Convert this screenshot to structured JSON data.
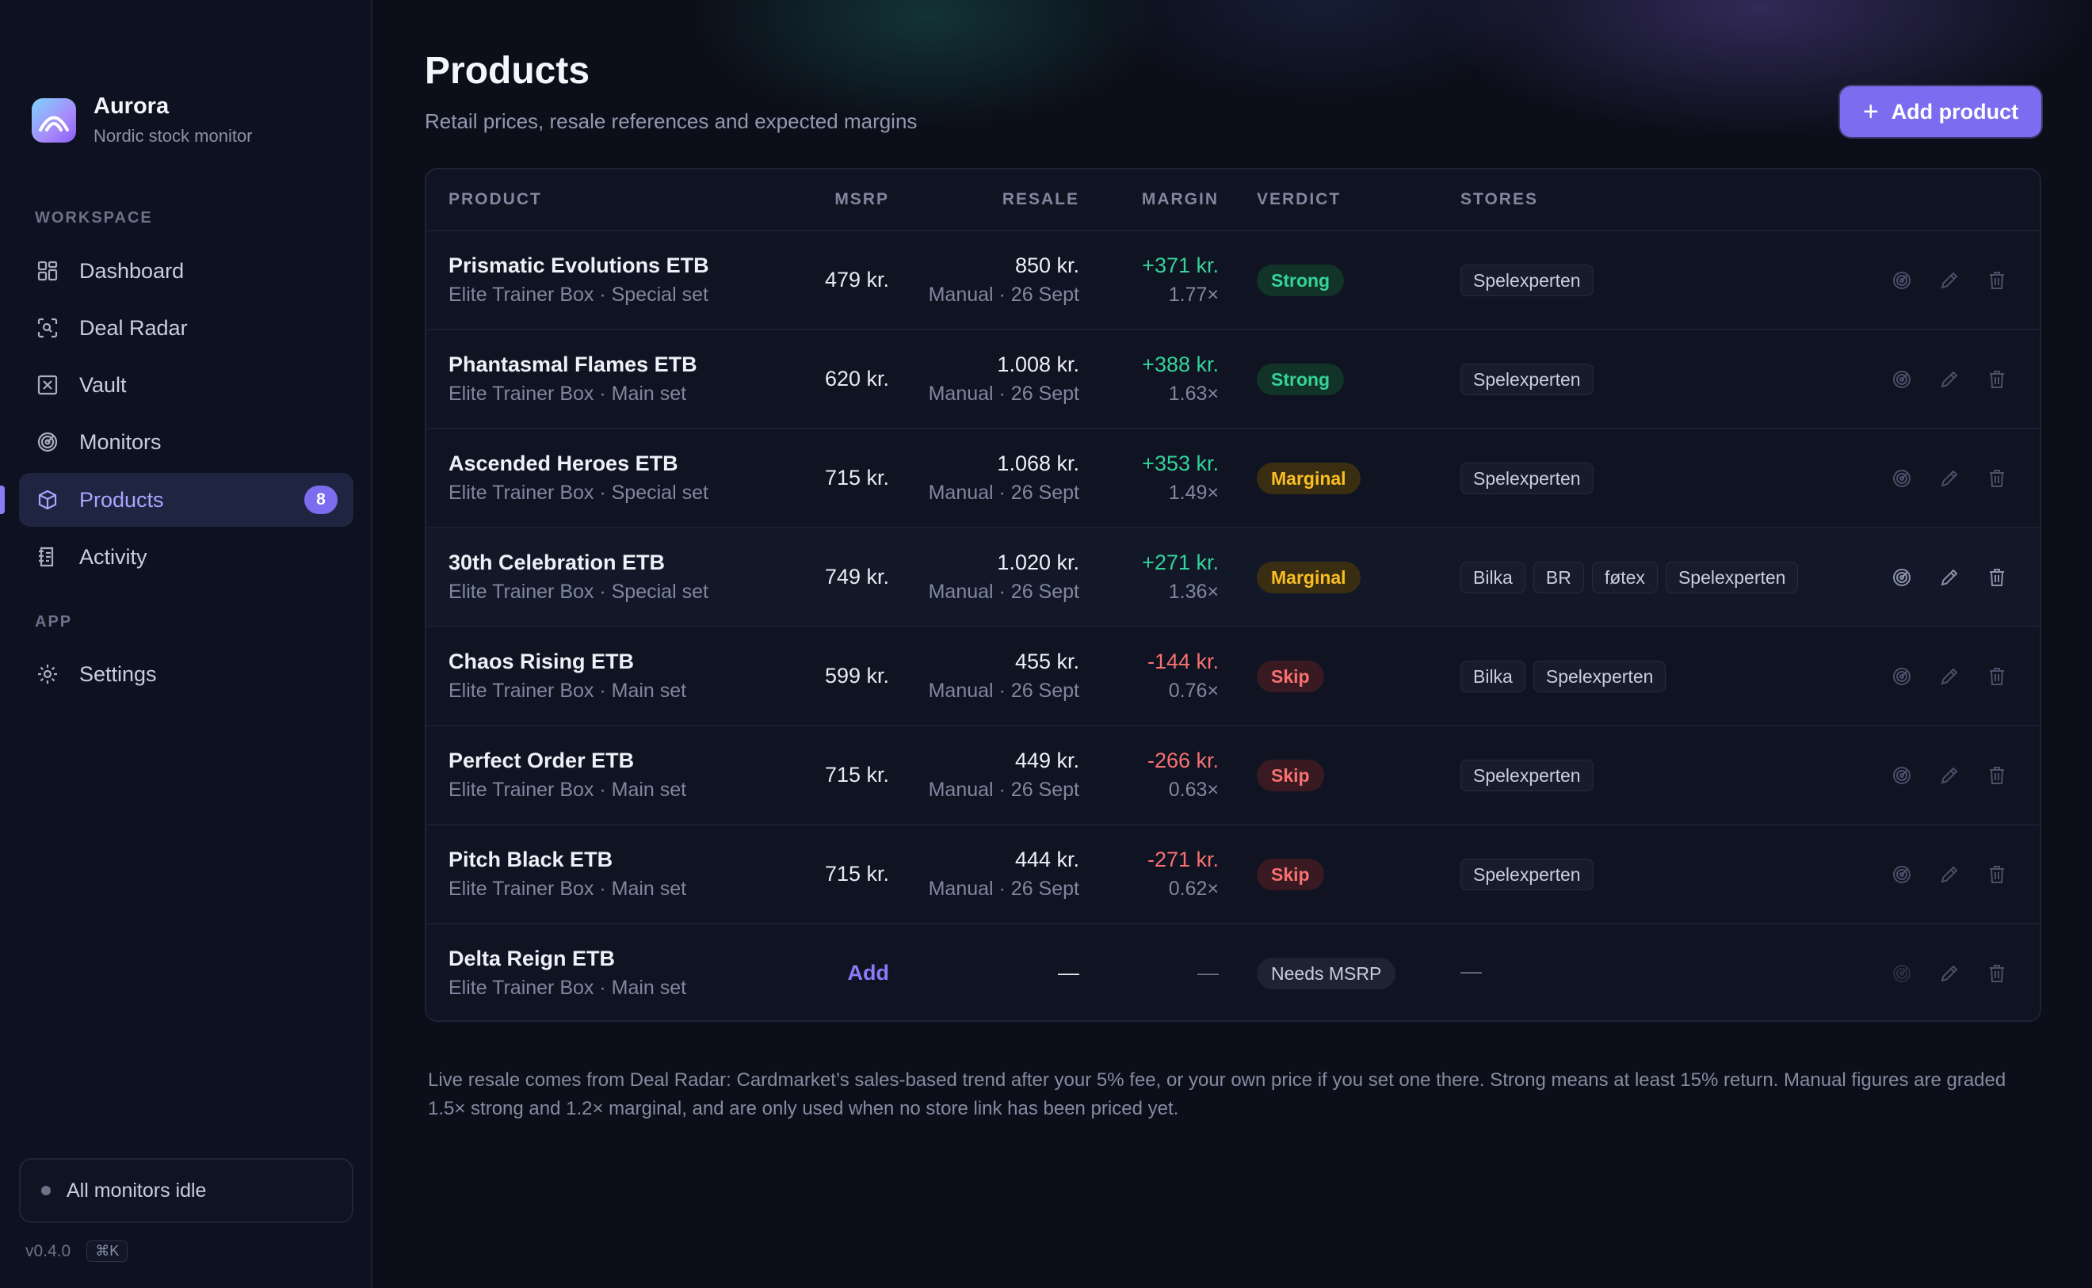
{
  "brand": {
    "name": "Aurora",
    "subtitle": "Nordic stock monitor"
  },
  "sidebar": {
    "workspace_label": "WORKSPACE",
    "app_label": "APP",
    "items": [
      {
        "label": "Dashboard",
        "icon": "grid-icon"
      },
      {
        "label": "Deal Radar",
        "icon": "scan-icon"
      },
      {
        "label": "Vault",
        "icon": "vault-icon"
      },
      {
        "label": "Monitors",
        "icon": "radar-icon"
      },
      {
        "label": "Products",
        "icon": "box-icon",
        "badge": "8",
        "active": true
      },
      {
        "label": "Activity",
        "icon": "activity-icon"
      }
    ],
    "app_items": [
      {
        "label": "Settings",
        "icon": "gear-icon"
      }
    ],
    "status": "All monitors idle",
    "version": "v0.4.0",
    "shortcut": "⌘K"
  },
  "header": {
    "title": "Products",
    "subtitle": "Retail prices, resale references and expected margins",
    "add_button": "Add product"
  },
  "table": {
    "columns": {
      "product": "PRODUCT",
      "msrp": "MSRP",
      "resale": "RESALE",
      "margin": "MARGIN",
      "verdict": "VERDICT",
      "stores": "STORES"
    },
    "rows": [
      {
        "name": "Prismatic Evolutions ETB",
        "sub": "Elite Trainer Box · Special set",
        "msrp": "479 kr.",
        "resale": "850 kr.",
        "resale_sub": "Manual · 26 Sept",
        "margin": "+371 kr.",
        "mult": "1.77×",
        "verdict": "Strong",
        "stores": [
          "Spelexperten"
        ]
      },
      {
        "name": "Phantasmal Flames ETB",
        "sub": "Elite Trainer Box · Main set",
        "msrp": "620 kr.",
        "resale": "1.008 kr.",
        "resale_sub": "Manual · 26 Sept",
        "margin": "+388 kr.",
        "mult": "1.63×",
        "verdict": "Strong",
        "stores": [
          "Spelexperten"
        ]
      },
      {
        "name": "Ascended Heroes ETB",
        "sub": "Elite Trainer Box · Special set",
        "msrp": "715 kr.",
        "resale": "1.068 kr.",
        "resale_sub": "Manual · 26 Sept",
        "margin": "+353 kr.",
        "mult": "1.49×",
        "verdict": "Marginal",
        "stores": [
          "Spelexperten"
        ]
      },
      {
        "name": "30th Celebration ETB",
        "sub": "Elite Trainer Box · Special set",
        "msrp": "749 kr.",
        "resale": "1.020 kr.",
        "resale_sub": "Manual · 26 Sept",
        "margin": "+271 kr.",
        "mult": "1.36×",
        "verdict": "Marginal",
        "stores": [
          "Bilka",
          "BR",
          "føtex",
          "Spelexperten"
        ]
      },
      {
        "name": "Chaos Rising ETB",
        "sub": "Elite Trainer Box · Main set",
        "msrp": "599 kr.",
        "resale": "455 kr.",
        "resale_sub": "Manual · 26 Sept",
        "margin": "-144 kr.",
        "mult": "0.76×",
        "verdict": "Skip",
        "stores": [
          "Bilka",
          "Spelexperten"
        ]
      },
      {
        "name": "Perfect Order ETB",
        "sub": "Elite Trainer Box · Main set",
        "msrp": "715 kr.",
        "resale": "449 kr.",
        "resale_sub": "Manual · 26 Sept",
        "margin": "-266 kr.",
        "mult": "0.63×",
        "verdict": "Skip",
        "stores": [
          "Spelexperten"
        ]
      },
      {
        "name": "Pitch Black ETB",
        "sub": "Elite Trainer Box · Main set",
        "msrp": "715 kr.",
        "resale": "444 kr.",
        "resale_sub": "Manual · 26 Sept",
        "margin": "-271 kr.",
        "mult": "0.62×",
        "verdict": "Skip",
        "stores": [
          "Spelexperten"
        ]
      },
      {
        "name": "Delta Reign ETB",
        "sub": "Elite Trainer Box · Main set",
        "msrp": "Add",
        "resale": "—",
        "resale_sub": "",
        "margin": "—",
        "mult": "",
        "verdict": "Needs MSRP",
        "stores": [],
        "stores_empty": "—"
      }
    ]
  },
  "footnote": "Live resale comes from Deal Radar: Cardmarket’s sales-based trend after your 5% fee, or your own price if you set one there. Strong means at least 15% return. Manual figures are graded 1.5× strong and 1.2× marginal, and are only used when no store link has been priced yet.",
  "colors": {
    "accent": "#7c6cf0",
    "positive": "#34d399",
    "negative": "#f87171",
    "warning": "#fbbf24"
  }
}
